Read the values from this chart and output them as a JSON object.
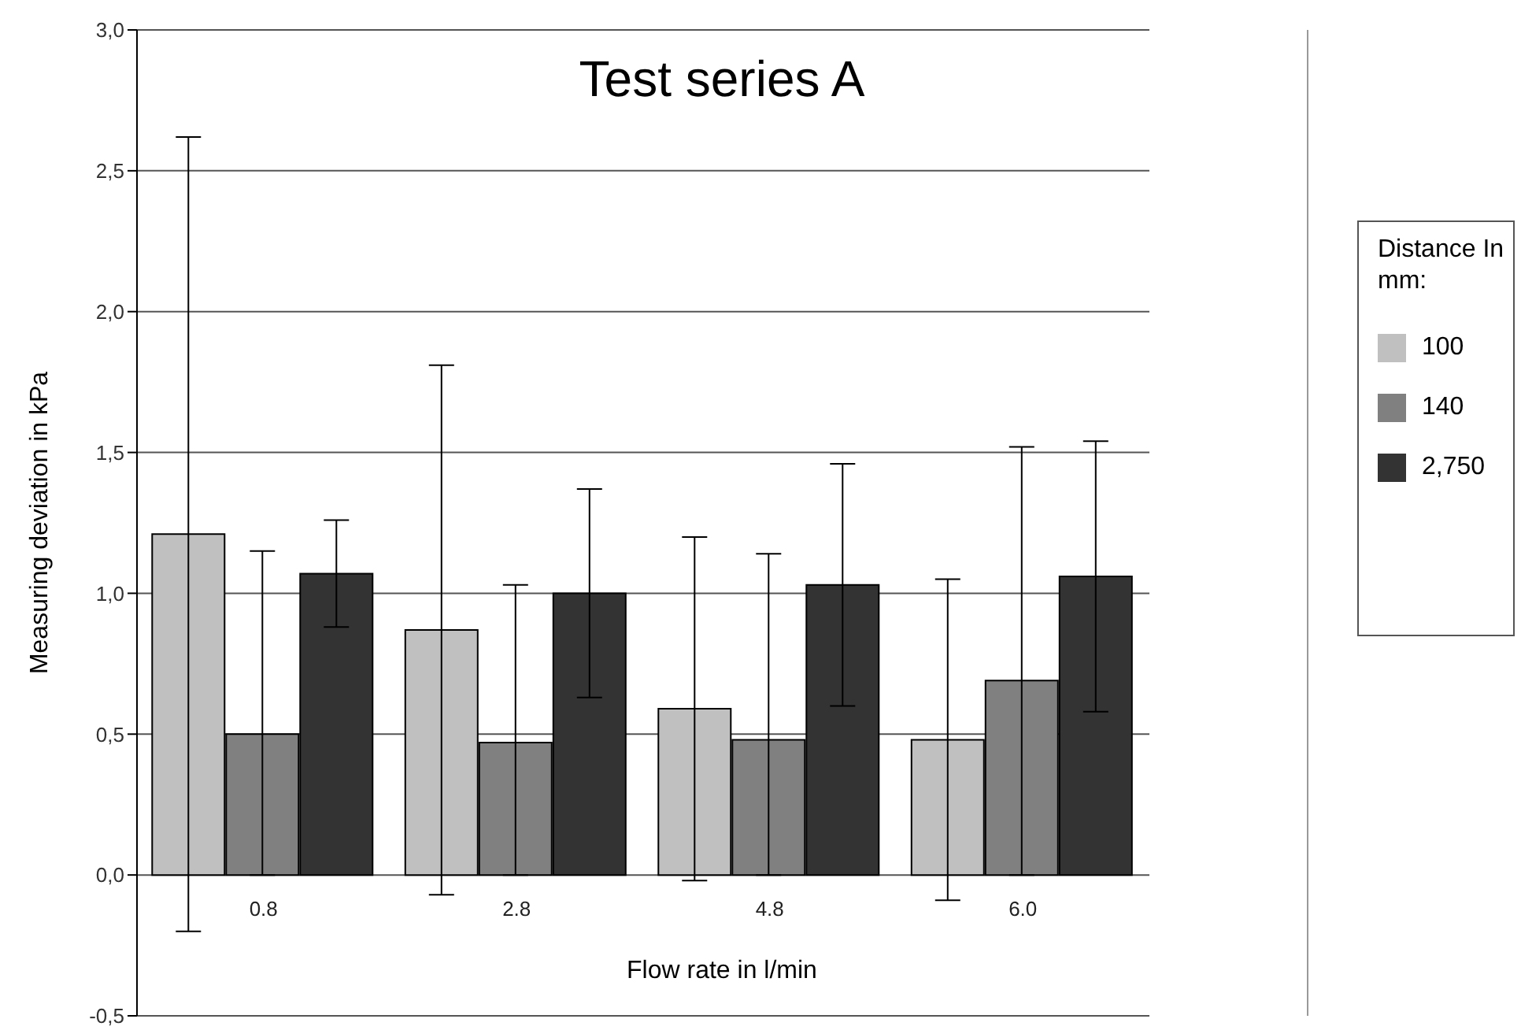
{
  "chart_data": {
    "type": "bar",
    "title": "Test series A",
    "xlabel": "Flow rate in l/min",
    "ylabel": "Measuring deviation in kPa",
    "legend_title": "Distance In mm:",
    "categories": [
      "0.8",
      "2.8",
      "4.8",
      "6.0"
    ],
    "series": [
      {
        "name": "100",
        "color": "#c0c0c0",
        "values": [
          1.21,
          0.87,
          0.59,
          0.48
        ],
        "errors": [
          1.41,
          0.94,
          0.61,
          0.57
        ]
      },
      {
        "name": "140",
        "color": "#808080",
        "values": [
          0.5,
          0.47,
          0.48,
          0.69
        ],
        "errors": [
          [
            0,
            1.15
          ],
          [
            0,
            1.03
          ],
          [
            0,
            1.14
          ],
          [
            0,
            1.52
          ]
        ]
      },
      {
        "name": "2,750",
        "color": "#333333",
        "values": [
          1.07,
          1.0,
          1.03,
          1.06
        ],
        "errors": [
          0.19,
          0.37,
          0.43,
          0.48
        ]
      }
    ],
    "ylim": [
      -0.5,
      3.0
    ],
    "yticks": [
      {
        "value": -0.5,
        "label": "-0,5"
      },
      {
        "value": 0,
        "label": "0,0"
      },
      {
        "value": 0.5,
        "label": "0,5"
      },
      {
        "value": 1,
        "label": "1,0"
      },
      {
        "value": 1.5,
        "label": "1,5"
      },
      {
        "value": 2,
        "label": "2,0"
      },
      {
        "value": 2.5,
        "label": "2,5"
      },
      {
        "value": 3,
        "label": "3,0"
      }
    ],
    "grid": "y",
    "legend": "right"
  }
}
